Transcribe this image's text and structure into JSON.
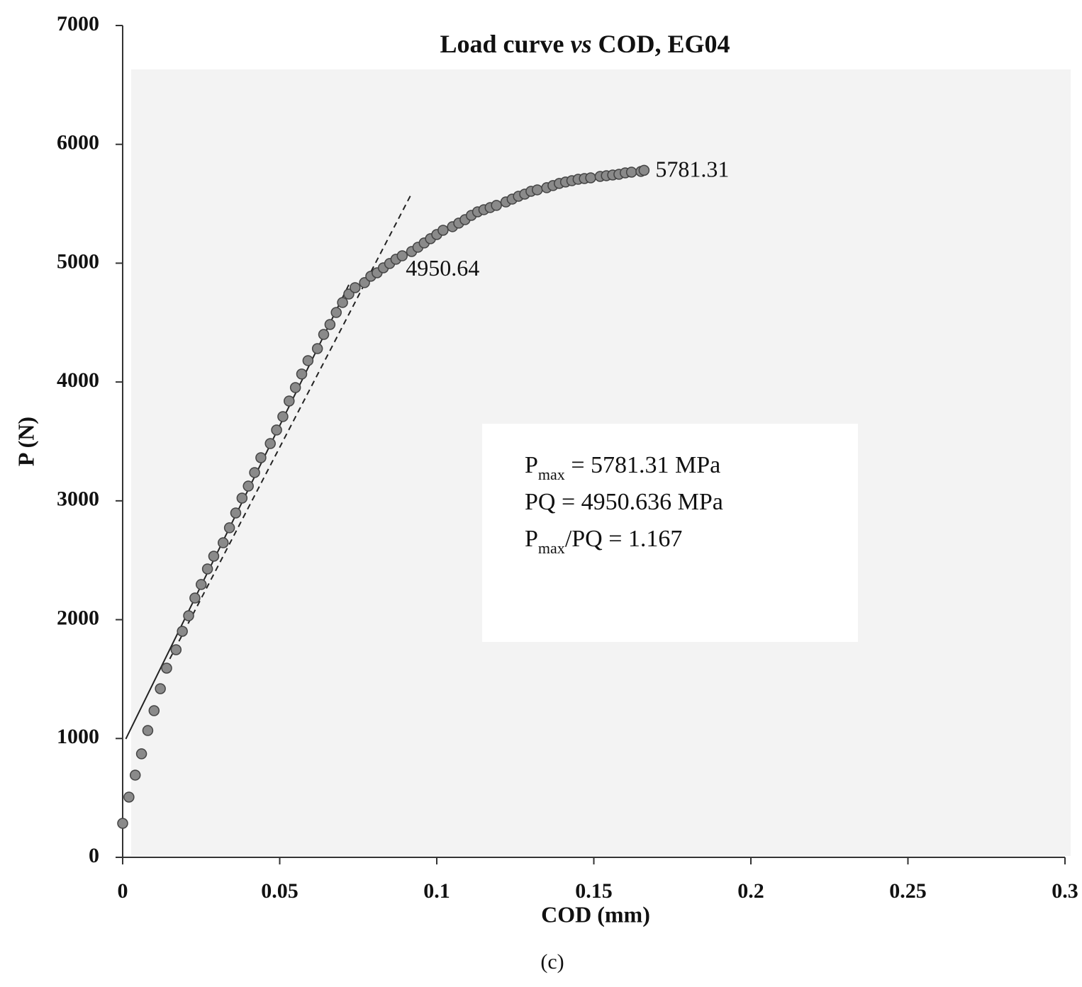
{
  "chart_data": {
    "type": "scatter",
    "title": "Load curve vs COD, EG04",
    "title_italic_word": "vs",
    "x_label": "COD (mm)",
    "y_label": "P (N)",
    "caption": "(c)",
    "xlim": [
      0,
      0.3
    ],
    "ylim": [
      0,
      7000
    ],
    "xticks": [
      0,
      0.05,
      0.1,
      0.15,
      0.2,
      0.25,
      0.3
    ],
    "yticks": [
      0,
      1000,
      2000,
      3000,
      4000,
      5000,
      6000,
      7000
    ],
    "x": [
      0,
      0.002,
      0.004,
      0.006,
      0.008,
      0.01,
      0.012,
      0.014,
      0.017,
      0.019,
      0.021,
      0.023,
      0.025,
      0.027,
      0.029,
      0.032,
      0.034,
      0.036,
      0.038,
      0.04,
      0.042,
      0.044,
      0.047,
      0.049,
      0.051,
      0.053,
      0.055,
      0.057,
      0.059,
      0.062,
      0.064,
      0.066,
      0.068,
      0.07,
      0.072,
      0.074,
      0.077,
      0.079,
      0.081,
      0.083,
      0.085,
      0.087,
      0.089,
      0.092,
      0.094,
      0.096,
      0.098,
      0.1,
      0.102,
      0.105,
      0.107,
      0.109,
      0.111,
      0.113,
      0.115,
      0.117,
      0.119,
      0.122,
      0.124,
      0.126,
      0.128,
      0.13,
      0.132,
      0.135,
      0.137,
      0.139,
      0.141,
      0.143,
      0.145,
      0.147,
      0.149,
      0.152,
      0.154,
      0.156,
      0.158,
      0.16,
      0.162,
      0.165,
      0.166
    ],
    "series": [
      {
        "color": "#8a8a8a",
        "values": [
          286,
          507,
          692,
          871,
          1067,
          1234,
          1419,
          1592,
          1747,
          1902,
          2033,
          2182,
          2296,
          2427,
          2534,
          2647,
          2773,
          2898,
          3023,
          3124,
          3238,
          3363,
          3482,
          3596,
          3709,
          3840,
          3953,
          4067,
          4180,
          4281,
          4400,
          4484,
          4585,
          4669,
          4740,
          4794,
          4836,
          4890,
          4919,
          4961,
          4997,
          5033,
          5062,
          5098,
          5134,
          5170,
          5206,
          5241,
          5277,
          5307,
          5337,
          5366,
          5402,
          5432,
          5450,
          5468,
          5486,
          5515,
          5539,
          5563,
          5581,
          5605,
          5617,
          5635,
          5653,
          5671,
          5683,
          5694,
          5706,
          5712,
          5718,
          5730,
          5736,
          5742,
          5748,
          5760,
          5766,
          5772,
          5781.31
        ]
      }
    ],
    "reference_lines": [
      {
        "style": "solid",
        "x": [
          0.001,
          0.072
        ],
        "y": [
          996,
          4818
        ]
      },
      {
        "style": "dashed",
        "x": [
          0.015,
          0.092
        ],
        "y": [
          1670,
          5587
        ]
      }
    ],
    "point_labels": [
      {
        "text": "5781.31",
        "x": 0.166,
        "y": 5781.31
      },
      {
        "text": "4950.64",
        "x": 0.0865,
        "y": 4950.64
      }
    ],
    "textbox": [
      [
        {
          "text": "P"
        },
        {
          "text": "max",
          "sub": true
        },
        {
          "text": " = 5781.31 MPa"
        }
      ],
      [
        {
          "text": "PQ = 4950.636 MPa"
        }
      ],
      [
        {
          "text": "P"
        },
        {
          "text": "max",
          "sub": true
        },
        {
          "text": "/PQ = 1.167"
        }
      ]
    ]
  }
}
